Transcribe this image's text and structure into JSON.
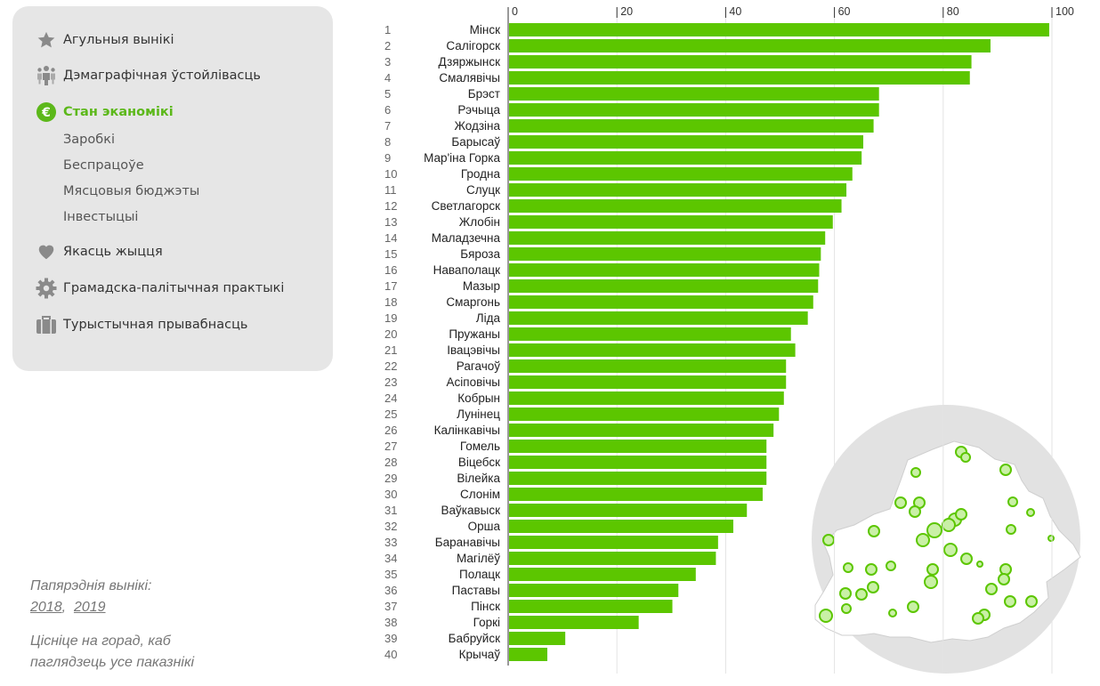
{
  "sidebar": {
    "items": [
      {
        "label": "Агульныя вынікі",
        "icon": "star-icon"
      },
      {
        "label": "Дэмаграфічная ўстойлівасць",
        "icon": "people-icon"
      },
      {
        "label": "Стан эканомікі",
        "icon": "euro-icon",
        "active": true
      },
      {
        "label": "Якасць жыцця",
        "icon": "heart-icon"
      },
      {
        "label": "Грамадска-палітычная практыкі",
        "icon": "gear-icon"
      },
      {
        "label": "Турыстычная прывабнасць",
        "icon": "suitcase-icon"
      }
    ],
    "subitems": [
      "Заробкі",
      "Беспрацоўе",
      "Мясцовыя бюджэты",
      "Інвестыцыі"
    ]
  },
  "footer": {
    "previous_label": "Папярэднія вынікі:",
    "years": [
      "2018",
      "2019"
    ],
    "hint": "Цісніце на горад, каб пaглядзець усе паказнікі"
  },
  "colors": {
    "accent": "#5cc600",
    "active": "#5cb81a",
    "map": "#dedede",
    "grid": "#e3e3e3"
  },
  "chart_data": {
    "type": "bar",
    "orientation": "horizontal",
    "xlim": [
      0,
      100
    ],
    "ticks": [
      0,
      20,
      40,
      60,
      80,
      100
    ],
    "ranks": [
      1,
      2,
      3,
      4,
      5,
      6,
      7,
      8,
      9,
      10,
      11,
      12,
      13,
      14,
      15,
      16,
      17,
      18,
      19,
      20,
      21,
      22,
      23,
      24,
      25,
      26,
      27,
      28,
      29,
      30,
      31,
      32,
      33,
      34,
      35,
      36,
      37,
      38,
      39,
      40
    ],
    "categories": [
      "Мінск",
      "Салігорск",
      "Дзяржынск",
      "Смалявічы",
      "Брэст",
      "Рэчыца",
      "Жодзіна",
      "Барысаў",
      "Мар'іна Горка",
      "Гродна",
      "Слуцк",
      "Светлагорск",
      "Жлобін",
      "Маладзечна",
      "Бяроза",
      "Наваполацк",
      "Мазыр",
      "Смаргонь",
      "Ліда",
      "Пружаны",
      "Івацэвічы",
      "Рагачоў",
      "Асіповічы",
      "Кобрын",
      "Лунінец",
      "Калінкавічы",
      "Гомель",
      "Віцебск",
      "Вілейка",
      "Слонім",
      "Ваўкавыск",
      "Орша",
      "Баранавічы",
      "Магілёў",
      "Полацк",
      "Паставы",
      "Пінск",
      "Горкі",
      "Бабруйск",
      "Крычаў"
    ],
    "values": [
      99.5,
      88.7,
      85.2,
      84.9,
      68.2,
      68.2,
      67.2,
      65.3,
      65.0,
      63.3,
      62.2,
      61.3,
      59.7,
      58.3,
      57.5,
      57.2,
      57.0,
      56.1,
      55.1,
      52.0,
      52.8,
      51.1,
      51.1,
      50.7,
      49.8,
      48.8,
      47.5,
      47.5,
      47.5,
      46.8,
      43.9,
      41.4,
      38.6,
      38.2,
      34.5,
      31.3,
      30.2,
      24.0,
      10.5,
      7.2
    ]
  }
}
